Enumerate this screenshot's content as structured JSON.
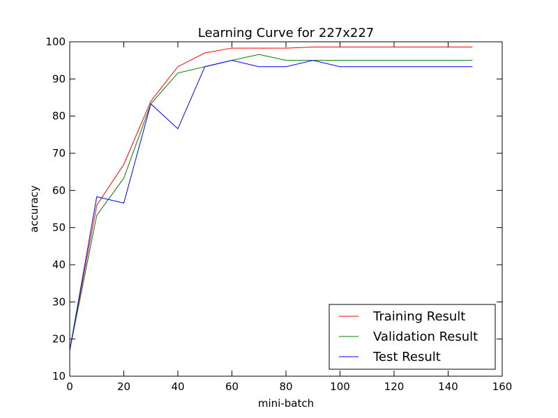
{
  "chart_data": {
    "type": "line",
    "title": "Learning Curve for 227x227",
    "xlabel": "mini-batch",
    "ylabel": "accuracy",
    "xlim": [
      0,
      160
    ],
    "ylim": [
      10,
      100
    ],
    "xticks": [
      0,
      20,
      40,
      60,
      80,
      100,
      120,
      140,
      160
    ],
    "yticks": [
      10,
      20,
      30,
      40,
      50,
      60,
      70,
      80,
      90,
      100
    ],
    "grid": false,
    "legend_position": "lower-right",
    "x": [
      0,
      10,
      20,
      30,
      40,
      50,
      60,
      70,
      80,
      90,
      100,
      110,
      120,
      130,
      140,
      149
    ],
    "series": [
      {
        "name": "Training Result",
        "color": "#ff0000",
        "values": [
          17,
          56,
          67,
          84,
          93.3,
          97,
          98.3,
          98.3,
          98.3,
          98.6,
          98.6,
          98.6,
          98.6,
          98.6,
          98.6,
          98.6
        ]
      },
      {
        "name": "Validation Result",
        "color": "#008000",
        "values": [
          17,
          53.3,
          63.3,
          83.3,
          91.6,
          93.3,
          95,
          96.6,
          95,
          95,
          95,
          95,
          95,
          95,
          95,
          95
        ]
      },
      {
        "name": "Test Result",
        "color": "#0000ff",
        "values": [
          17,
          58.3,
          56.6,
          83.3,
          76.6,
          93.3,
          95,
          93.3,
          93.3,
          95,
          93.3,
          93.3,
          93.3,
          93.3,
          93.3,
          93.3
        ]
      }
    ]
  }
}
